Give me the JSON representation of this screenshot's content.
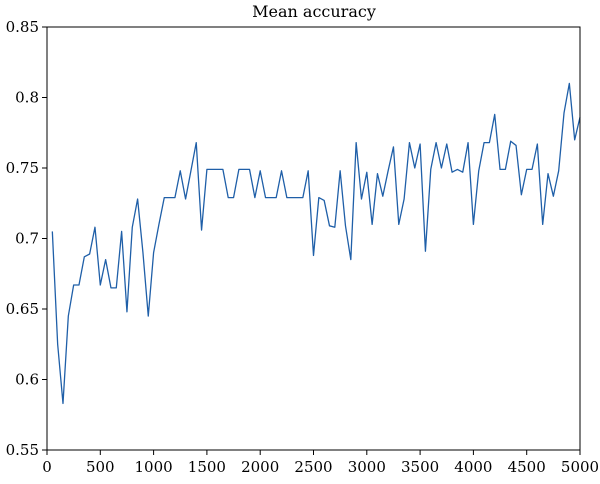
{
  "chart_data": {
    "type": "line",
    "title": "Mean accuracy",
    "xlabel": "",
    "ylabel": "",
    "xlim": [
      0,
      5000
    ],
    "ylim": [
      0.55,
      0.85
    ],
    "xticks": [
      0,
      500,
      1000,
      1500,
      2000,
      2500,
      3000,
      3500,
      4000,
      4500,
      5000
    ],
    "xtick_labels": [
      "0",
      "500",
      "1000",
      "1500",
      "2000",
      "2500",
      "3000",
      "3500",
      "4000",
      "4500",
      "5000"
    ],
    "yticks": [
      0.55,
      0.6,
      0.65,
      0.7,
      0.75,
      0.8,
      0.85
    ],
    "ytick_labels": [
      "0.55",
      "0.6",
      "0.65",
      "0.7",
      "0.75",
      "0.8",
      "0.85"
    ],
    "grid": false,
    "line_color": "#1f5fa8",
    "series": [
      {
        "x": [
          50,
          100,
          150,
          200,
          250,
          300,
          350,
          400,
          450,
          500,
          550,
          600,
          650,
          700,
          750,
          800,
          850,
          900,
          950,
          1000,
          1050,
          1100,
          1150,
          1200,
          1250,
          1300,
          1350,
          1400,
          1450,
          1500,
          1550,
          1600,
          1650,
          1700,
          1750,
          1800,
          1850,
          1900,
          1950,
          2000,
          2050,
          2100,
          2150,
          2200,
          2250,
          2300,
          2350,
          2400,
          2450,
          2500,
          2550,
          2600,
          2650,
          2700,
          2750,
          2800,
          2850,
          2900,
          2950,
          3000,
          3050,
          3100,
          3150,
          3200,
          3250,
          3300,
          3350,
          3400,
          3450,
          3500,
          3550,
          3600,
          3650,
          3700,
          3750,
          3800,
          3850,
          3900,
          3950,
          4000,
          4050,
          4100,
          4150,
          4200,
          4250,
          4300,
          4350,
          4400,
          4450,
          4500,
          4550,
          4600,
          4650,
          4700,
          4750,
          4800,
          4850,
          4900,
          4950,
          5000
        ],
        "values": [
          0.705,
          0.625,
          0.583,
          0.645,
          0.667,
          0.667,
          0.687,
          0.689,
          0.708,
          0.667,
          0.685,
          0.665,
          0.665,
          0.705,
          0.648,
          0.708,
          0.728,
          0.69,
          0.645,
          0.69,
          0.71,
          0.729,
          0.729,
          0.729,
          0.748,
          0.728,
          0.748,
          0.768,
          0.706,
          0.749,
          0.749,
          0.749,
          0.749,
          0.729,
          0.729,
          0.749,
          0.749,
          0.749,
          0.729,
          0.748,
          0.729,
          0.729,
          0.729,
          0.748,
          0.729,
          0.729,
          0.729,
          0.729,
          0.748,
          0.688,
          0.729,
          0.727,
          0.709,
          0.708,
          0.748,
          0.709,
          0.685,
          0.768,
          0.728,
          0.747,
          0.71,
          0.746,
          0.73,
          0.748,
          0.765,
          0.71,
          0.728,
          0.768,
          0.75,
          0.767,
          0.691,
          0.749,
          0.768,
          0.75,
          0.767,
          0.747,
          0.749,
          0.747,
          0.768,
          0.71,
          0.748,
          0.768,
          0.768,
          0.788,
          0.749,
          0.749,
          0.769,
          0.766,
          0.731,
          0.749,
          0.749,
          0.767,
          0.71,
          0.746,
          0.73,
          0.748,
          0.789,
          0.81,
          0.77,
          0.786
        ]
      }
    ]
  }
}
